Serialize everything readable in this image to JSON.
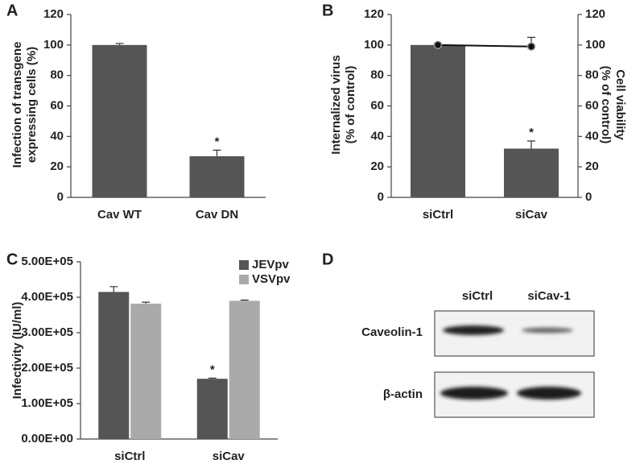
{
  "chart_data": [
    {
      "type": "bar",
      "panel": "A",
      "categories": [
        "Cav WT",
        "Cav DN"
      ],
      "series": [
        {
          "color": "#555555",
          "values": [
            100,
            27
          ],
          "errors": [
            1,
            4
          ],
          "significance": [
            null,
            "*"
          ]
        }
      ],
      "ylim": [
        0,
        120
      ],
      "yticks": [
        0,
        20,
        40,
        60,
        80,
        100,
        120
      ],
      "ylabel": [
        "Infection of transgene",
        "expressing cells (%)"
      ]
    },
    {
      "type": "bar",
      "panel": "B",
      "categories": [
        "siCtrl",
        "siCav"
      ],
      "series": [
        {
          "color": "#555555",
          "values": [
            100,
            32
          ],
          "errors": [
            0.5,
            5
          ],
          "significance": [
            null,
            "*"
          ]
        },
        {
          "type": "line",
          "axis": "y2",
          "color": "#111111",
          "values": [
            100,
            99
          ],
          "errors": [
            1,
            6
          ]
        }
      ],
      "ylim": [
        0,
        120
      ],
      "yticks": [
        0,
        20,
        40,
        60,
        80,
        100,
        120
      ],
      "y2lim": [
        0,
        120
      ],
      "y2ticks": [
        0,
        20,
        40,
        60,
        80,
        100,
        120
      ],
      "ylabel": [
        "Internalized virus",
        "(% of control)"
      ],
      "y2label": [
        "Cell viability",
        "(% of control)"
      ]
    },
    {
      "type": "bar",
      "panel": "C",
      "categories": [
        "siCtrl",
        "siCav"
      ],
      "series": [
        {
          "name": "JEVpv",
          "color": "#555555",
          "values": [
            415000,
            170000
          ],
          "errors": [
            15000,
            2000
          ],
          "significance": [
            null,
            "*"
          ]
        },
        {
          "name": "VSVpv",
          "color": "#aaaaaa",
          "values": [
            382000,
            390000
          ],
          "errors": [
            4000,
            2000
          ]
        }
      ],
      "ylim": [
        0,
        500000
      ],
      "yticks": [
        {
          "value": 0,
          "label": "0.00E+00"
        },
        {
          "value": 100000,
          "label": "1.00E+05"
        },
        {
          "value": 200000,
          "label": "2.00E+05"
        },
        {
          "value": 300000,
          "label": "3.00E+05"
        },
        {
          "value": 400000,
          "label": "4.00E+05"
        },
        {
          "value": 500000,
          "label": "5.00E+05"
        }
      ],
      "ylabel": "Infectivity (IU/ml)",
      "legend": "top-right"
    }
  ],
  "blot": {
    "panel": "D",
    "lanes": [
      "siCtrl",
      "siCav-1"
    ],
    "rows": [
      "Caveolin-1",
      "β-actin"
    ]
  }
}
